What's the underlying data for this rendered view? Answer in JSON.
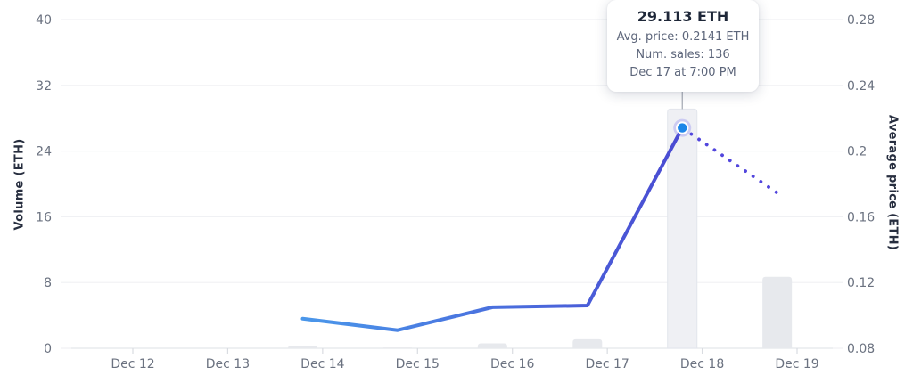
{
  "tooltip": {
    "title": "29.113 ETH",
    "lines": [
      "Avg. price: 0.2141 ETH",
      "Num. sales: 136",
      "Dec 17 at 7:00 PM"
    ]
  },
  "chart_data": {
    "type": "combo-bar-line",
    "title": "",
    "x_axis": {
      "tick_labels": [
        "Dec 12",
        "Dec 13",
        "Dec 14",
        "Dec 15",
        "Dec 16",
        "Dec 17",
        "Dec 18",
        "Dec 19"
      ],
      "grid": false
    },
    "left_y_axis": {
      "title": "Volume (ETH)",
      "tick_labels": [
        "0",
        "8",
        "16",
        "24",
        "32",
        "40"
      ],
      "tick_values": [
        0,
        8,
        16,
        24,
        32,
        40
      ],
      "range": [
        0,
        40
      ]
    },
    "right_y_axis": {
      "title": "Average price (ETH)",
      "tick_labels": [
        "0.08",
        "0.12",
        "0.16",
        "0.2",
        "0.24",
        "0.28"
      ],
      "tick_values": [
        0.08,
        0.12,
        0.16,
        0.2,
        0.24,
        0.28
      ],
      "range": [
        0.08,
        0.28
      ]
    },
    "grid": "horizontal-only",
    "legend": "none",
    "series": [
      {
        "name": "Volume (ETH)",
        "type": "bar",
        "x_day": [
          1.79,
          2.79,
          3.79,
          4.79,
          5.79,
          6.79
        ],
        "values": [
          0.27,
          0.1,
          0.6,
          1.1,
          29.113,
          8.7
        ],
        "highlight_index": 4
      },
      {
        "name": "Average price (ETH)",
        "type": "line",
        "x_day": [
          1.79,
          2.79,
          3.79,
          4.79,
          5.79,
          6.79
        ],
        "values": [
          0.098,
          0.091,
          0.105,
          0.106,
          0.2141,
          0.1746
        ],
        "dashed_segment_start_index": 4,
        "marker_index": 4
      }
    ],
    "highlighted_point": {
      "volume_eth": 29.113,
      "avg_price_eth": 0.2141,
      "num_sales": 136,
      "time_label": "Dec 17 at 7:00 PM"
    }
  },
  "colors": {
    "background": "#ffffff",
    "grid_line": "#f0f1f4",
    "axis_base_line": "#e4e6ea",
    "x_tick_mark": "#d9dce1",
    "tick_label": "#6b7280",
    "axis_title": "#272e3f",
    "bar_fill": "#e7e9ed",
    "bar_highlight_fill": "#eff0f4",
    "bar_highlight_stroke": "#e2e5ec",
    "line_gradient_start": "#4a97ea",
    "line_gradient_end": "#4a4ad2",
    "dotted_line": "#5246dd",
    "marker_fill": "#1d86e8",
    "marker_ring": "#ffffff",
    "marker_halo": "rgba(124,119,240,0.30)",
    "guide_line": "#a3a8b2",
    "tooltip_title": "#1e2738",
    "tooltip_text": "#5c657a"
  }
}
